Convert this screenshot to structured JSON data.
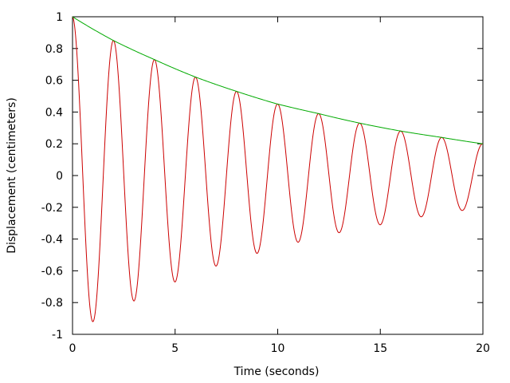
{
  "chart_data": {
    "type": "line",
    "xlabel": "Time (seconds)",
    "ylabel": "Displacement (centimeters)",
    "xlim": [
      0,
      20
    ],
    "ylim": [
      -1,
      1
    ],
    "xticks": [
      "0",
      "5",
      "10",
      "15",
      "20"
    ],
    "yticks": [
      "-1",
      "-0.8",
      "-0.6",
      "-0.4",
      "-0.2",
      "0",
      "0.2",
      "0.4",
      "0.6",
      "0.8",
      "1"
    ],
    "grid": false,
    "legend": "none",
    "series": [
      {
        "color": "#cc0000",
        "x": [
          0,
          1,
          2,
          3,
          4,
          5,
          6,
          7,
          8,
          9,
          10,
          11,
          12,
          13,
          14,
          15,
          16,
          17,
          18,
          19,
          20
        ],
        "y": [
          1,
          -0.92,
          0.85,
          -0.79,
          0.73,
          -0.67,
          0.62,
          -0.57,
          0.53,
          -0.49,
          0.45,
          -0.42,
          0.39,
          -0.36,
          0.33,
          -0.31,
          0.28,
          -0.26,
          0.24,
          -0.22,
          0.2
        ]
      },
      {
        "color": "#00aa00",
        "x": [
          0,
          2,
          4,
          6,
          8,
          10,
          12,
          14,
          16,
          18,
          20
        ],
        "y": [
          1,
          0.85,
          0.73,
          0.62,
          0.53,
          0.45,
          0.39,
          0.33,
          0.28,
          0.24,
          0.2
        ]
      }
    ]
  }
}
